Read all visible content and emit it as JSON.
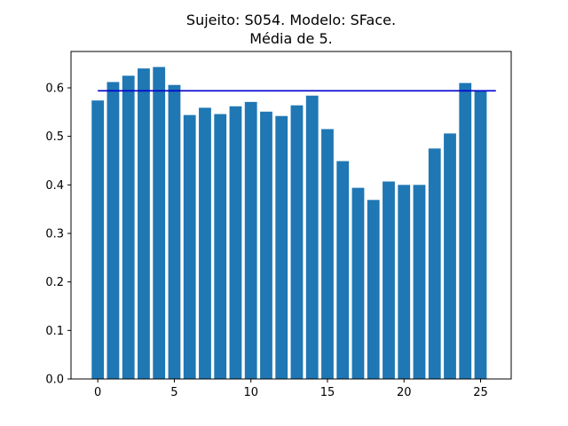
{
  "chart_data": {
    "type": "bar",
    "title_lines": [
      "Sujeito: S054. Modelo: SFace.",
      "Média de 5."
    ],
    "xlabel": "",
    "ylabel": "",
    "x": [
      0,
      1,
      2,
      3,
      4,
      5,
      6,
      7,
      8,
      9,
      10,
      11,
      12,
      13,
      14,
      15,
      16,
      17,
      18,
      19,
      20,
      21,
      22,
      23,
      24,
      25
    ],
    "values": [
      0.574,
      0.612,
      0.625,
      0.64,
      0.643,
      0.606,
      0.544,
      0.559,
      0.546,
      0.562,
      0.571,
      0.551,
      0.542,
      0.564,
      0.584,
      0.515,
      0.449,
      0.394,
      0.369,
      0.407,
      0.4,
      0.4,
      0.475,
      0.506,
      0.61,
      0.594
    ],
    "bar_color": "#1f77b4",
    "mean_line": {
      "value": 0.594,
      "x_start": 0,
      "x_end": 26,
      "color": "#0000cd"
    },
    "xlim": [
      -1.75,
      27.0
    ],
    "ylim": [
      0,
      0.675
    ],
    "x_ticks": [
      0,
      5,
      10,
      15,
      20,
      25
    ],
    "y_ticks": [
      0.0,
      0.1,
      0.2,
      0.3,
      0.4,
      0.5,
      0.6
    ],
    "grid": false,
    "legend": "none"
  }
}
